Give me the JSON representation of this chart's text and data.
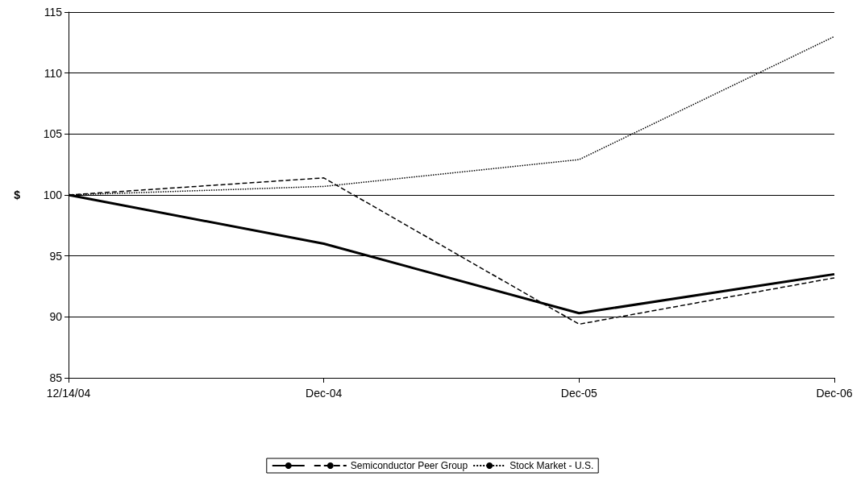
{
  "chart_data": {
    "type": "line",
    "ylabel": "$",
    "categories": [
      "12/14/04",
      "Dec-04",
      "Dec-05",
      "Dec-06"
    ],
    "series": [
      {
        "color": "#000000",
        "line_style": "solid",
        "values": [
          100,
          96,
          90.3,
          93.5
        ]
      },
      {
        "name": "Semiconductor Peer Group",
        "color": "#000000",
        "line_style": "dashed",
        "values": [
          100,
          101.4,
          89.4,
          93.2
        ]
      },
      {
        "name": "Stock Market - U.S.",
        "color": "#000000",
        "line_style": "dotted",
        "values": [
          100,
          100.7,
          102.9,
          113
        ]
      }
    ],
    "ylim": [
      85,
      115
    ],
    "yticks": [
      85,
      90,
      95,
      100,
      105,
      110,
      115
    ],
    "grid": "y",
    "legend": "bottom",
    "marker": "none"
  }
}
